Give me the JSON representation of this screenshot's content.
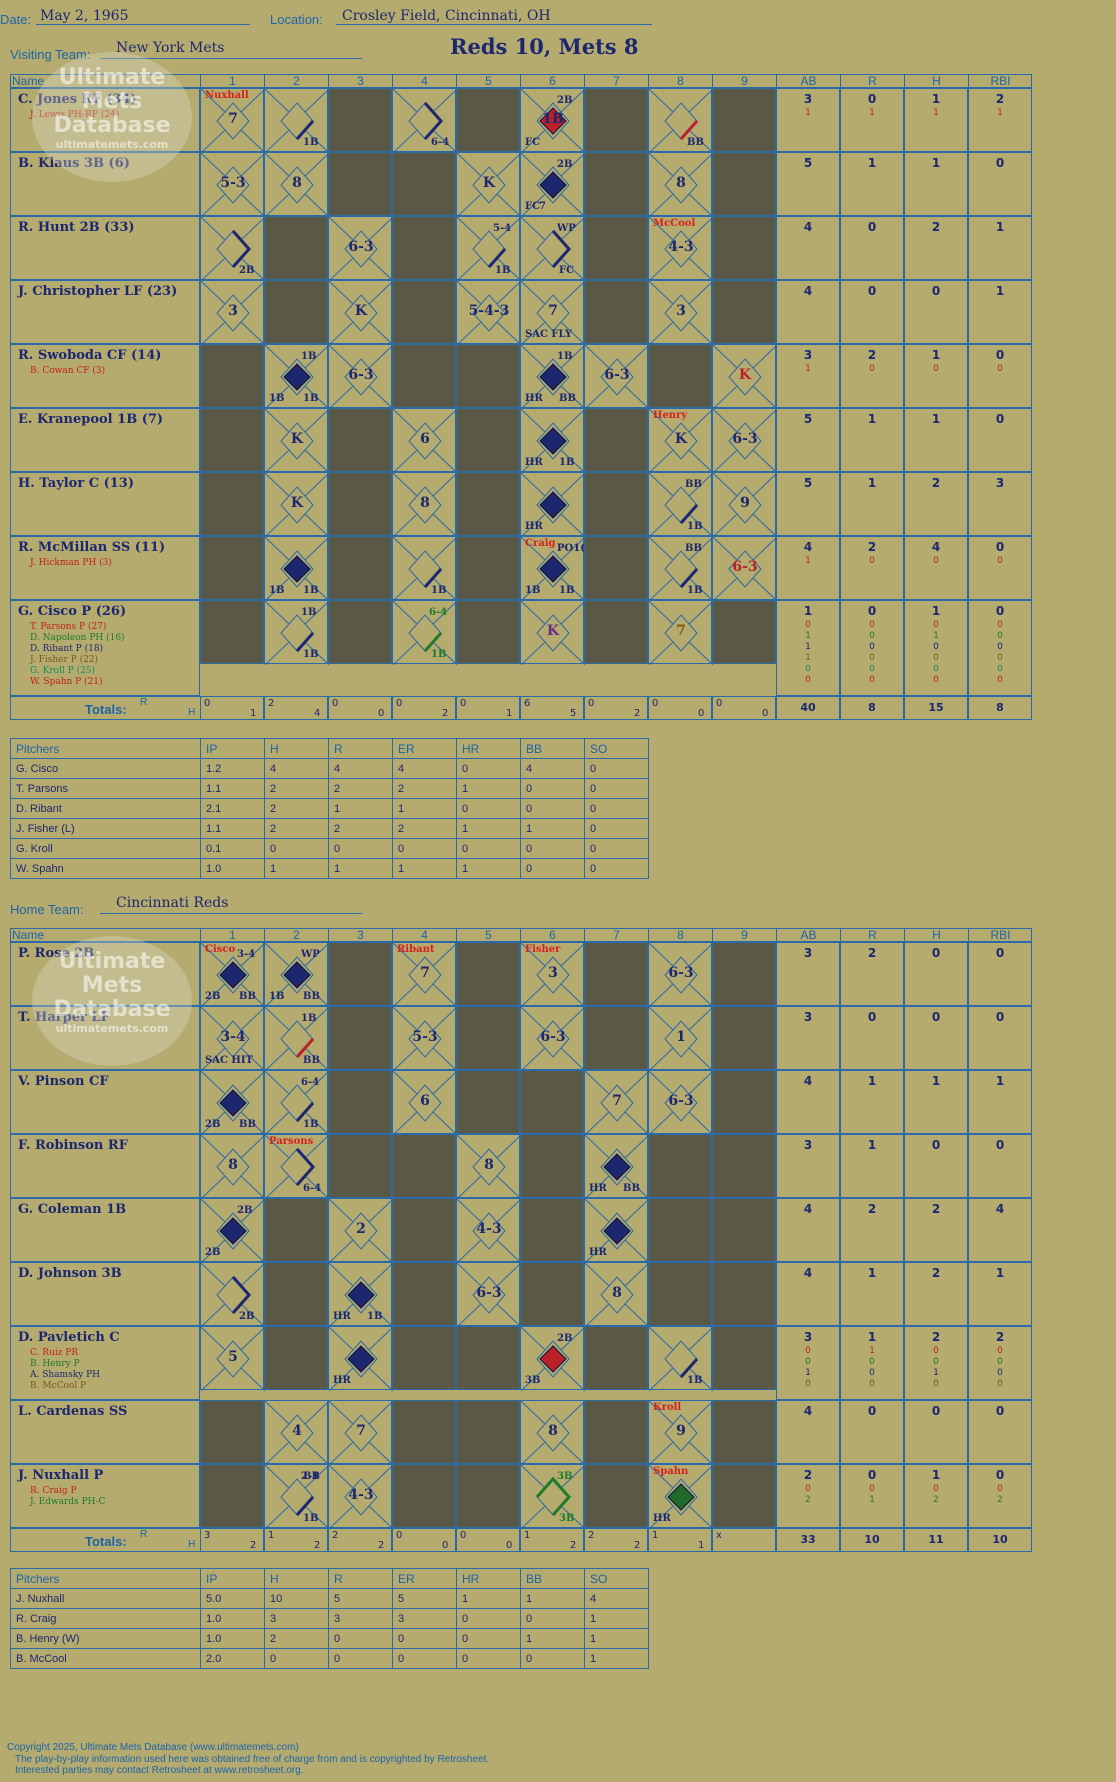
{
  "header": {
    "date_label": "Date:",
    "date": "May 2, 1965",
    "location_label": "Location:",
    "location": "Crosley Field, Cincinnati, OH",
    "visiting_label": "Visiting Team:",
    "visiting_team": "New York Mets",
    "home_label": "Home Team:",
    "home_team": "Cincinnati Reds",
    "result": "Reds 10, Mets 8"
  },
  "columns": {
    "name": "Name",
    "innings": [
      "1",
      "2",
      "3",
      "4",
      "5",
      "6",
      "7",
      "8",
      "9"
    ],
    "stats": [
      "AB",
      "R",
      "H",
      "RBI"
    ]
  },
  "watermark": {
    "line1": "Ultimate",
    "line2": "Mets",
    "line3": "Database",
    "url": "ultimatemets.com"
  },
  "visitors": {
    "players": [
      {
        "name": "C. Jones RF (34)",
        "subs": [
          {
            "name": "J. Lewis PH-RF (24)",
            "color": "#c0201c"
          }
        ],
        "stats": [
          "3",
          "0",
          "1",
          "2"
        ],
        "substats": [
          [
            "1",
            "1",
            "1",
            "1"
          ]
        ]
      },
      {
        "name": "B. Klaus 3B (6)",
        "subs": [],
        "stats": [
          "5",
          "1",
          "1",
          "0"
        ],
        "substats": []
      },
      {
        "name": "R. Hunt 2B (33)",
        "subs": [],
        "stats": [
          "4",
          "0",
          "2",
          "1"
        ],
        "substats": []
      },
      {
        "name": "J. Christopher LF (23)",
        "subs": [],
        "stats": [
          "4",
          "0",
          "0",
          "1"
        ],
        "substats": []
      },
      {
        "name": "R. Swoboda CF (14)",
        "subs": [
          {
            "name": "B. Cowan CF (3)",
            "color": "#c0201c"
          }
        ],
        "stats": [
          "3",
          "2",
          "1",
          "0"
        ],
        "substats": [
          [
            "1",
            "0",
            "0",
            "0"
          ]
        ]
      },
      {
        "name": "E. Kranepool 1B (7)",
        "subs": [],
        "stats": [
          "5",
          "1",
          "1",
          "0"
        ],
        "substats": []
      },
      {
        "name": "H. Taylor C (13)",
        "subs": [],
        "stats": [
          "5",
          "1",
          "2",
          "3"
        ],
        "substats": []
      },
      {
        "name": "R. McMillan SS (11)",
        "subs": [
          {
            "name": "J. Hickman PH (3)",
            "color": "#c0201c"
          }
        ],
        "stats": [
          "4",
          "2",
          "4",
          "0"
        ],
        "substats": [
          [
            "1",
            "0",
            "0",
            "0"
          ]
        ]
      },
      {
        "name": "G. Cisco P (26)",
        "subs": [
          {
            "name": "T. Parsons P (27)",
            "color": "#c0201c"
          },
          {
            "name": "D. Napoleon PH (16)",
            "color": "#1f7a2a"
          },
          {
            "name": "D. Ribant P (18)",
            "color": "#1c2770"
          },
          {
            "name": "J. Fisher P (22)",
            "color": "#7a5a1a"
          },
          {
            "name": "G. Kroll P (25)",
            "color": "#1c8a5a"
          },
          {
            "name": "W. Spahn P (21)",
            "color": "#c0201c"
          }
        ],
        "stats": [
          "1",
          "0",
          "1",
          "0"
        ],
        "substats": [
          [
            "0",
            "0",
            "0",
            "0"
          ],
          [
            "1",
            "0",
            "1",
            "0"
          ],
          [
            "1",
            "0",
            "0",
            "0"
          ],
          [
            "1",
            "0",
            "0",
            "0"
          ],
          [
            "0",
            "0",
            "0",
            "0"
          ],
          [
            "0",
            "0",
            "0",
            "0"
          ]
        ]
      }
    ],
    "totals_label": "Totals:",
    "totals_rh": [
      [
        "0",
        "1"
      ],
      [
        "2",
        "4"
      ],
      [
        "0",
        "0"
      ],
      [
        "0",
        "2"
      ],
      [
        "0",
        "1"
      ],
      [
        "6",
        "5"
      ],
      [
        "0",
        "2"
      ],
      [
        "0",
        "0"
      ],
      [
        "0",
        "0"
      ]
    ],
    "totals_stats": [
      "40",
      "8",
      "15",
      "8"
    ]
  },
  "home": {
    "players": [
      {
        "name": "P. Rose 2B",
        "subs": [],
        "stats": [
          "3",
          "2",
          "0",
          "0"
        ],
        "substats": []
      },
      {
        "name": "T. Harper LF",
        "subs": [],
        "stats": [
          "3",
          "0",
          "0",
          "0"
        ],
        "substats": []
      },
      {
        "name": "V. Pinson CF",
        "subs": [],
        "stats": [
          "4",
          "1",
          "1",
          "1"
        ],
        "substats": []
      },
      {
        "name": "F. Robinson RF",
        "subs": [],
        "stats": [
          "3",
          "1",
          "0",
          "0"
        ],
        "substats": []
      },
      {
        "name": "G. Coleman 1B",
        "subs": [],
        "stats": [
          "4",
          "2",
          "2",
          "4"
        ],
        "substats": []
      },
      {
        "name": "D. Johnson 3B",
        "subs": [],
        "stats": [
          "4",
          "1",
          "2",
          "1"
        ],
        "substats": []
      },
      {
        "name": "D. Pavletich C",
        "subs": [
          {
            "name": "C. Ruiz PR",
            "color": "#c0201c"
          },
          {
            "name": "B. Henry P",
            "color": "#1f7a2a"
          },
          {
            "name": "A. Shamsky PH",
            "color": "#1c2770"
          },
          {
            "name": "B. McCool P",
            "color": "#7a5a1a"
          }
        ],
        "stats": [
          "3",
          "1",
          "2",
          "2"
        ],
        "substats": [
          [
            "0",
            "1",
            "0",
            "0"
          ],
          [
            "0",
            "0",
            "0",
            "0"
          ],
          [
            "1",
            "0",
            "1",
            "0"
          ],
          [
            "0",
            "0",
            "0",
            "0"
          ]
        ]
      },
      {
        "name": "L. Cardenas SS",
        "subs": [],
        "stats": [
          "4",
          "0",
          "0",
          "0"
        ],
        "substats": []
      },
      {
        "name": "J. Nuxhall P",
        "subs": [
          {
            "name": "R. Craig P",
            "color": "#c0201c"
          },
          {
            "name": "J. Edwards PH-C",
            "color": "#1f7a2a"
          }
        ],
        "stats": [
          "2",
          "0",
          "1",
          "0"
        ],
        "substats": [
          [
            "0",
            "0",
            "0",
            "0"
          ],
          [
            "2",
            "1",
            "2",
            "2"
          ]
        ]
      }
    ],
    "totals_label": "Totals:",
    "totals_rh": [
      [
        "3",
        "2"
      ],
      [
        "1",
        "2"
      ],
      [
        "2",
        "2"
      ],
      [
        "0",
        "0"
      ],
      [
        "0",
        "0"
      ],
      [
        "1",
        "2"
      ],
      [
        "2",
        "2"
      ],
      [
        "1",
        "1"
      ],
      [
        "x",
        ""
      ]
    ],
    "totals_stats": [
      "33",
      "10",
      "11",
      "10"
    ]
  },
  "pitching_headers": [
    "Pitchers",
    "IP",
    "H",
    "R",
    "ER",
    "HR",
    "BB",
    "SO"
  ],
  "visitor_pitchers": [
    [
      "G. Cisco",
      "1.2",
      "4",
      "4",
      "4",
      "0",
      "4",
      "0"
    ],
    [
      "T. Parsons",
      "1.1",
      "2",
      "2",
      "2",
      "1",
      "0",
      "0"
    ],
    [
      "D. Ribant",
      "2.1",
      "2",
      "1",
      "1",
      "0",
      "0",
      "0"
    ],
    [
      "J. Fisher (L)",
      "1.1",
      "2",
      "2",
      "2",
      "1",
      "1",
      "0"
    ],
    [
      "G. Kroll",
      "0.1",
      "0",
      "0",
      "0",
      "0",
      "0",
      "0"
    ],
    [
      "W. Spahn",
      "1.0",
      "1",
      "1",
      "1",
      "1",
      "0",
      "0"
    ]
  ],
  "home_pitchers": [
    [
      "J. Nuxhall",
      "5.0",
      "10",
      "5",
      "5",
      "1",
      "1",
      "4"
    ],
    [
      "R. Craig",
      "1.0",
      "3",
      "3",
      "3",
      "0",
      "0",
      "1"
    ],
    [
      "B. Henry (W)",
      "1.0",
      "2",
      "0",
      "0",
      "0",
      "1",
      "1"
    ],
    [
      "B. McCool",
      "2.0",
      "0",
      "0",
      "0",
      "0",
      "0",
      "1"
    ]
  ],
  "footer": {
    "line1": "Copyright 2025, Ultimate Mets Database (www.ultimatemets.com)",
    "line2": "The play-by-play information used here was obtained free of charge from and is copyrighted by Retrosheet.",
    "line3": "Interested parties may contact Retrosheet at www.retrosheet.org."
  },
  "visitor_cells": [
    [
      {
        "t": "7",
        "n": "Nuxhall"
      },
      {
        "t": "1B",
        "d": "1B"
      },
      {
        "dark": 1
      },
      {
        "t": "6-4",
        "d": "6-4"
      },
      {
        "dark": 1
      },
      {
        "t": "1B",
        "run": "red",
        "a": "2B",
        "b": "FC"
      },
      {
        "dark": 1
      },
      {
        "t": "BB",
        "d": "BB"
      },
      {
        "dark": 1
      }
    ],
    [
      {
        "t": "5-3"
      },
      {
        "t": "8"
      },
      {
        "dark": 1
      },
      {
        "dark": 1
      },
      {
        "t": "K"
      },
      {
        "run": "navy",
        "a": "2B",
        "b": "FC",
        "c": "7"
      },
      {
        "dark": 1
      },
      {
        "t": "8"
      },
      {
        "dark": 1
      }
    ],
    [
      {
        "t": "2B",
        "d": "2B"
      },
      {
        "dark": 1
      },
      {
        "t": "6-3"
      },
      {
        "dark": 1
      },
      {
        "t": "1B",
        "a": "5-4",
        "d": "1B"
      },
      {
        "t": "FC",
        "a": "WP",
        "d": "FC"
      },
      {
        "dark": 1
      },
      {
        "t": "4-3",
        "n": "McCool"
      },
      {
        "dark": 1
      }
    ],
    [
      {
        "t": "3"
      },
      {
        "dark": 1
      },
      {
        "t": "K"
      },
      {
        "dark": 1
      },
      {
        "t": "5-4-3"
      },
      {
        "t": "7",
        "b": "SAC FLY"
      },
      {
        "dark": 1
      },
      {
        "t": "3"
      },
      {
        "dark": 1
      }
    ],
    [
      {
        "dark": 1
      },
      {
        "run": "navy",
        "a": "1B",
        "b": "1B",
        "c2": "1B"
      },
      {
        "t": "6-3"
      },
      {
        "dark": 1
      },
      {
        "dark": 1
      },
      {
        "run": "navy",
        "a": "1B",
        "b": "HR",
        "c2": "BB"
      },
      {
        "t": "6-3"
      },
      {
        "dark": 1
      },
      {
        "t": "K",
        "red": 1
      }
    ],
    [
      {
        "dark": 1
      },
      {
        "t": "K"
      },
      {
        "dark": 1
      },
      {
        "t": "6"
      },
      {
        "dark": 1
      },
      {
        "run": "navy",
        "b": "HR",
        "c2": "1B"
      },
      {
        "dark": 1
      },
      {
        "t": "K",
        "n": "Henry"
      },
      {
        "t": "6-3"
      }
    ],
    [
      {
        "dark": 1
      },
      {
        "t": "K"
      },
      {
        "dark": 1
      },
      {
        "t": "8"
      },
      {
        "dark": 1
      },
      {
        "run": "navy",
        "b": "HR"
      },
      {
        "dark": 1
      },
      {
        "t": "1B",
        "a": "BB",
        "d": "1B"
      },
      {
        "t": "9"
      }
    ],
    [
      {
        "dark": 1
      },
      {
        "run": "navy",
        "b": "1B",
        "c2": "1B"
      },
      {
        "dark": 1
      },
      {
        "t": "1B",
        "d": "1B"
      },
      {
        "dark": 1
      },
      {
        "run": "navy",
        "a": "PO1(1B)",
        "b": "1B",
        "c2": "1B",
        "n": "Craig"
      },
      {
        "dark": 1
      },
      {
        "t": "1B",
        "a": "BB",
        "d": "1B"
      },
      {
        "t": "6-3",
        "red": 1
      }
    ],
    [
      {
        "dark": 1
      },
      {
        "t": "1B",
        "a": "1B",
        "d": "1B"
      },
      {
        "dark": 1
      },
      {
        "t": "1B",
        "a": "6-4",
        "d": "1B",
        "green": 1
      },
      {
        "dark": 1
      },
      {
        "t": "K",
        "purple": 1
      },
      {
        "dark": 1
      },
      {
        "t": "7",
        "brown": 1
      },
      {
        "dark": 1
      }
    ]
  ],
  "home_cells": [
    [
      {
        "run": "navy",
        "a": "3-4",
        "b": "2B",
        "c2": "BB",
        "n": "Cisco"
      },
      {
        "run": "navy",
        "a": "WP",
        "b": "1B",
        "c2": "BB"
      },
      {
        "dark": 1
      },
      {
        "t": "7",
        "n": "Ribant"
      },
      {
        "dark": 1
      },
      {
        "t": "3",
        "n": "Fisher"
      },
      {
        "dark": 1
      },
      {
        "t": "6-3"
      },
      {
        "dark": 1
      }
    ],
    [
      {
        "t": "3-4",
        "b": "SAC HIT"
      },
      {
        "t": "BB",
        "a": "1B",
        "d": "BB"
      },
      {
        "dark": 1
      },
      {
        "t": "5-3"
      },
      {
        "dark": 1
      },
      {
        "t": "6-3"
      },
      {
        "dark": 1
      },
      {
        "t": "1"
      },
      {
        "dark": 1
      }
    ],
    [
      {
        "run": "navy",
        "b": "2B",
        "c2": "BB"
      },
      {
        "t": "1B",
        "a": "6-4",
        "d": "1B"
      },
      {
        "dark": 1
      },
      {
        "t": "6"
      },
      {
        "dark": 1
      },
      {
        "dark": 1
      },
      {
        "t": "7"
      },
      {
        "t": "6-3"
      },
      {
        "dark": 1
      }
    ],
    [
      {
        "t": "8"
      },
      {
        "t": "6-4",
        "n": "Parsons",
        "d": "6-4"
      },
      {
        "dark": 1
      },
      {
        "dark": 1
      },
      {
        "t": "8"
      },
      {
        "dark": 1
      },
      {
        "run": "navy",
        "b": "HR",
        "c2": "BB"
      },
      {
        "dark": 1
      },
      {
        "dark": 1
      }
    ],
    [
      {
        "run": "navy",
        "a": "2B",
        "b": "2B"
      },
      {
        "dark": 1
      },
      {
        "t": "2"
      },
      {
        "dark": 1
      },
      {
        "t": "4-3"
      },
      {
        "dark": 1
      },
      {
        "run": "navy",
        "b": "HR"
      },
      {
        "dark": 1
      },
      {
        "dark": 1
      }
    ],
    [
      {
        "t": "2B",
        "d": "2B"
      },
      {
        "dark": 1
      },
      {
        "run": "navy",
        "b": "HR",
        "c2": "1B"
      },
      {
        "dark": 1
      },
      {
        "t": "6-3"
      },
      {
        "dark": 1
      },
      {
        "t": "8"
      },
      {
        "dark": 1
      },
      {
        "dark": 1
      }
    ],
    [
      {
        "t": "5"
      },
      {
        "dark": 1
      },
      {
        "run": "navy",
        "b": "HR"
      },
      {
        "dark": 1
      },
      {
        "dark": 1
      },
      {
        "run": "red",
        "a": "2B",
        "b": "3B"
      },
      {
        "dark": 1
      },
      {
        "t": "1B",
        "d": "1B",
        "purple": 1
      },
      {
        "dark": 1
      }
    ],
    [
      {
        "dark": 1
      },
      {
        "t": "4"
      },
      {
        "t": "7"
      },
      {
        "dark": 1
      },
      {
        "dark": 1
      },
      {
        "t": "8"
      },
      {
        "dark": 1
      },
      {
        "t": "9",
        "n": "Kroll"
      },
      {
        "dark": 1
      }
    ],
    [
      {
        "dark": 1
      },
      {
        "t": "1B",
        "a": "2-1",
        "a2": "BB",
        "d": "1B"
      },
      {
        "t": "4-3"
      },
      {
        "dark": 1
      },
      {
        "dark": 1
      },
      {
        "t": "3B",
        "a": "3B",
        "d": "3B",
        "green": 1
      },
      {
        "dark": 1
      },
      {
        "run": "green",
        "b": "HR",
        "n": "Spahn"
      },
      {
        "dark": 1
      }
    ]
  ]
}
